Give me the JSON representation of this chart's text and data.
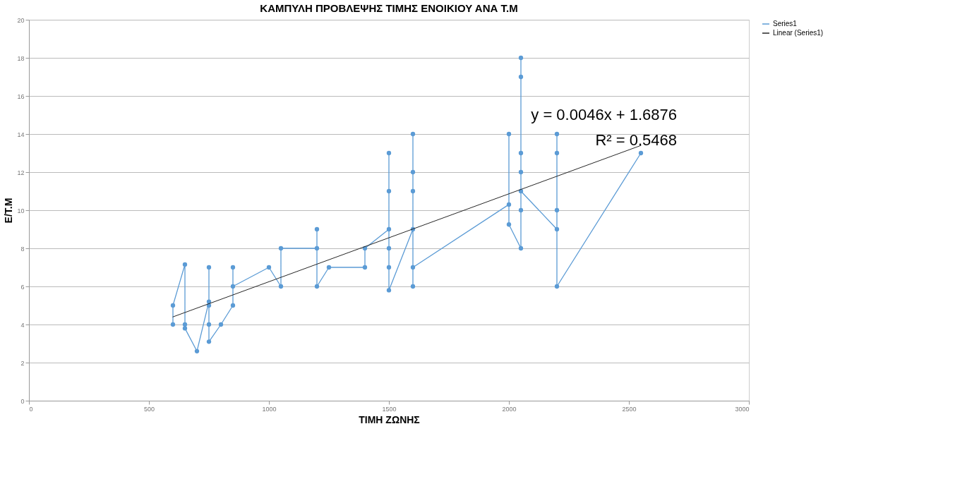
{
  "chart_data": {
    "type": "line",
    "title": "ΚΑΜΠΥΛΗ ΠΡΟΒΛΕΨΗΣ ΤΙΜΗΣ ΕΝΟΙΚΙΟΥ ΑΝΑ Τ.Μ",
    "xlabel": "ΤΙΜΗ ΖΩΝΗΣ",
    "ylabel": "Ε/Τ.Μ",
    "xlim": [
      0,
      3000
    ],
    "xticks": [
      0,
      500,
      1000,
      1500,
      2000,
      2500,
      3000
    ],
    "ylim": [
      0,
      20
    ],
    "yticks": [
      0,
      2,
      4,
      6,
      8,
      10,
      12,
      14,
      16,
      18,
      20
    ],
    "grid": "y",
    "legend": "right",
    "line_style": "solid",
    "annotations": [
      "y = 0.0046x + 1.6876",
      "R² = 0.5468"
    ],
    "series": [
      {
        "name": "Series1",
        "color": "#5b9bd5",
        "marker": "circle",
        "x": [
          600,
          600,
          650,
          650,
          650,
          700,
          750,
          750,
          750,
          750,
          750,
          800,
          850,
          850,
          850,
          1000,
          1050,
          1050,
          1200,
          1200,
          1200,
          1250,
          1400,
          1400,
          1500,
          1500,
          1500,
          1500,
          1500,
          1500,
          1600,
          1600,
          1600,
          1600,
          1600,
          1600,
          2000,
          2000,
          2000,
          2050,
          2050,
          2050,
          2050,
          2050,
          2050,
          2050,
          2200,
          2200,
          2200,
          2200,
          2200,
          2550
        ],
        "values": [
          4,
          5,
          7.15,
          4,
          3.8,
          2.6,
          5.2,
          7,
          5,
          4,
          3.1,
          4,
          5,
          7,
          6,
          7,
          6,
          8,
          8,
          9,
          6,
          7,
          7,
          8,
          9,
          13,
          11,
          8,
          7,
          5.8,
          9,
          14,
          12,
          11,
          6,
          7,
          10.3,
          14,
          9.25,
          8,
          10,
          12,
          13,
          17,
          18,
          11,
          9,
          10,
          13,
          14,
          6,
          13
        ]
      },
      {
        "name": "Linear (Series1)",
        "color": "#262626",
        "marker": "none",
        "type": "line",
        "x": [
          600,
          2550
        ],
        "values": [
          4.4,
          13.4
        ]
      }
    ]
  }
}
